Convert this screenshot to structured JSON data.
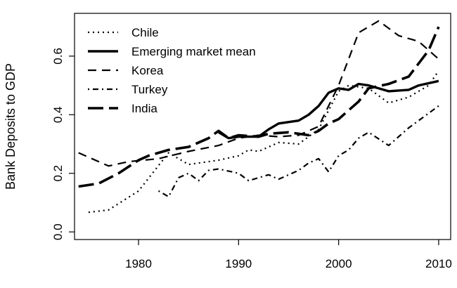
{
  "chart_data": {
    "type": "line",
    "title": "",
    "xlabel": "",
    "ylabel": "Bank Deposits to GDP",
    "xlim": [
      1973.6,
      2011.2
    ],
    "ylim": [
      -0.026,
      0.746
    ],
    "x_ticks": [
      1980,
      1990,
      2000,
      2010
    ],
    "x_tick_labels": [
      "1980",
      "1990",
      "2000",
      "2010"
    ],
    "y_ticks": [
      0.0,
      0.2,
      0.4,
      0.6
    ],
    "y_tick_labels": [
      "0.0",
      "0.2",
      "0.4",
      "0.6"
    ],
    "grid": false,
    "legend_position": "top-left",
    "series": [
      {
        "name": "Chile",
        "style": "dotted",
        "x": [
          1975,
          1977,
          1980,
          1983,
          1985,
          1988,
          1990,
          1991,
          1992,
          1994,
          1996,
          1998,
          2000,
          2001,
          2003,
          2005,
          2007,
          2009,
          2010
        ],
        "y": [
          0.067,
          0.075,
          0.14,
          0.27,
          0.23,
          0.245,
          0.26,
          0.28,
          0.275,
          0.305,
          0.3,
          0.35,
          0.48,
          0.5,
          0.49,
          0.44,
          0.46,
          0.5,
          0.55
        ]
      },
      {
        "name": "Emerging market mean",
        "style": "solid",
        "x": [
          1988,
          1989,
          1990,
          1992,
          1993,
          1994,
          1996,
          1997,
          1998,
          1999,
          2000,
          2001,
          2002,
          2003,
          2004,
          2005,
          2007,
          2008,
          2010
        ],
        "y": [
          0.34,
          0.32,
          0.325,
          0.325,
          0.35,
          0.37,
          0.38,
          0.4,
          0.43,
          0.475,
          0.49,
          0.485,
          0.505,
          0.5,
          0.49,
          0.48,
          0.485,
          0.5,
          0.515
        ]
      },
      {
        "name": "Korea",
        "style": "dashed",
        "x": [
          1974,
          1977,
          1979,
          1982,
          1985,
          1988,
          1990,
          1992,
          1994,
          1996,
          1998,
          2000,
          2002,
          2004,
          2006,
          2008,
          2010
        ],
        "y": [
          0.27,
          0.225,
          0.24,
          0.25,
          0.275,
          0.295,
          0.32,
          0.33,
          0.325,
          0.33,
          0.36,
          0.5,
          0.68,
          0.72,
          0.67,
          0.65,
          0.59
        ]
      },
      {
        "name": "Turkey",
        "style": "dotdash",
        "x": [
          1982,
          1983,
          1984,
          1985,
          1986,
          1987,
          1988,
          1990,
          1991,
          1993,
          1994,
          1996,
          1997,
          1998,
          1999,
          2000,
          2001,
          2002,
          2003,
          2005,
          2007,
          2010
        ],
        "y": [
          0.14,
          0.12,
          0.185,
          0.2,
          0.175,
          0.21,
          0.215,
          0.2,
          0.175,
          0.195,
          0.18,
          0.21,
          0.235,
          0.25,
          0.205,
          0.26,
          0.28,
          0.32,
          0.34,
          0.295,
          0.355,
          0.43
        ]
      },
      {
        "name": "India",
        "style": "longdash",
        "x": [
          1974,
          1976,
          1978,
          1980,
          1981,
          1983,
          1985,
          1987,
          1988,
          1989,
          1990,
          1992,
          1993,
          1995,
          1996,
          1997,
          1998,
          1999,
          2000,
          2002,
          2003,
          2005,
          2007,
          2009,
          2010
        ],
        "y": [
          0.155,
          0.165,
          0.2,
          0.245,
          0.26,
          0.28,
          0.29,
          0.32,
          0.345,
          0.32,
          0.33,
          0.325,
          0.335,
          0.34,
          0.335,
          0.33,
          0.345,
          0.37,
          0.385,
          0.445,
          0.49,
          0.505,
          0.53,
          0.62,
          0.7
        ]
      }
    ]
  }
}
